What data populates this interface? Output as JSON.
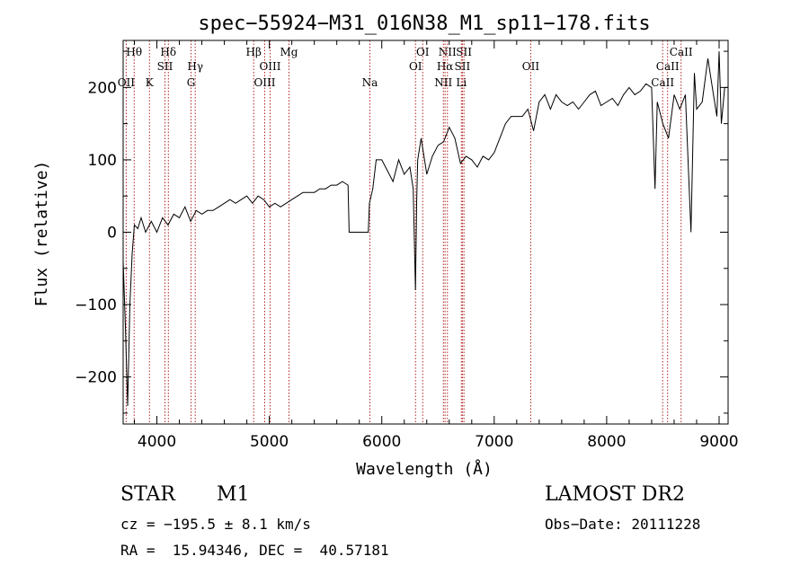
{
  "chart_data": {
    "type": "line",
    "title": "spec−55924−M31_016N38_M1_sp11−178.fits",
    "xlabel": "Wavelength (Å)",
    "ylabel": "Flux (relative)",
    "xlim": [
      3700,
      9080
    ],
    "ylim": [
      -265,
      265
    ],
    "x_ticks": [
      4000,
      5000,
      6000,
      7000,
      8000,
      9000
    ],
    "y_ticks": [
      -200,
      -100,
      0,
      100,
      200
    ],
    "y_tick_labels": [
      "−200",
      "−100",
      "0",
      "100",
      "200"
    ],
    "grid": false,
    "series": [
      {
        "x": [
          3700,
          3720,
          3740,
          3760,
          3780,
          3800,
          3830,
          3860,
          3900,
          3950,
          4000,
          4050,
          4100,
          4150,
          4200,
          4250,
          4300,
          4350,
          4400,
          4450,
          4500,
          4550,
          4600,
          4650,
          4700,
          4750,
          4800,
          4850,
          4900,
          4950,
          5000,
          5050,
          5100,
          5150,
          5200,
          5250,
          5300,
          5350,
          5400,
          5450,
          5500,
          5550,
          5600,
          5650,
          5700,
          5710,
          5750,
          5800,
          5850,
          5880,
          5890,
          5920,
          5950,
          6000,
          6050,
          6100,
          6150,
          6200,
          6250,
          6280,
          6300,
          6310,
          6320,
          6350,
          6400,
          6450,
          6500,
          6550,
          6600,
          6650,
          6700,
          6750,
          6800,
          6850,
          6900,
          6950,
          7000,
          7050,
          7100,
          7150,
          7200,
          7250,
          7300,
          7350,
          7400,
          7450,
          7500,
          7550,
          7600,
          7650,
          7700,
          7750,
          7800,
          7850,
          7900,
          7950,
          8000,
          8050,
          8100,
          8150,
          8200,
          8250,
          8300,
          8350,
          8400,
          8430,
          8450,
          8500,
          8550,
          8600,
          8650,
          8700,
          8750,
          8780,
          8800,
          8850,
          8900,
          8950,
          8980,
          9000,
          9020,
          9050,
          9080
        ],
        "y": [
          -40,
          -130,
          -240,
          -100,
          -30,
          10,
          5,
          20,
          0,
          15,
          0,
          20,
          10,
          25,
          20,
          35,
          15,
          30,
          25,
          30,
          30,
          35,
          40,
          45,
          40,
          45,
          50,
          40,
          50,
          45,
          35,
          40,
          35,
          40,
          45,
          50,
          55,
          55,
          55,
          60,
          60,
          65,
          65,
          70,
          65,
          0,
          0,
          0,
          0,
          0,
          40,
          60,
          100,
          100,
          85,
          70,
          100,
          80,
          90,
          60,
          -80,
          40,
          100,
          130,
          80,
          105,
          120,
          125,
          145,
          130,
          95,
          105,
          100,
          90,
          105,
          100,
          110,
          130,
          150,
          160,
          160,
          160,
          170,
          140,
          180,
          190,
          170,
          190,
          180,
          175,
          180,
          170,
          180,
          190,
          195,
          175,
          180,
          185,
          175,
          190,
          200,
          190,
          195,
          205,
          200,
          60,
          180,
          150,
          130,
          190,
          170,
          190,
          0,
          220,
          170,
          180,
          240,
          190,
          160,
          250,
          150,
          200,
          200
        ]
      }
    ],
    "emission_lines": [
      {
        "label": "Hθ",
        "x": 3798,
        "row": 1
      },
      {
        "label": "OII",
        "x": 3727,
        "row": 3
      },
      {
        "label": "K",
        "x": 3934,
        "row": 3
      },
      {
        "label": "Hδ",
        "x": 4102,
        "row": 1
      },
      {
        "label": "SII",
        "x": 4072,
        "row": 2
      },
      {
        "label": "Hγ",
        "x": 4341,
        "row": 2
      },
      {
        "label": "G",
        "x": 4304,
        "row": 3
      },
      {
        "label": "Hβ",
        "x": 4861,
        "row": 1
      },
      {
        "label": "OIII",
        "x": 5007,
        "row": 2
      },
      {
        "label": "OIII",
        "x": 4959,
        "row": 3
      },
      {
        "label": "Mg",
        "x": 5175,
        "row": 1
      },
      {
        "label": "Na",
        "x": 5894,
        "row": 3
      },
      {
        "label": "OI",
        "x": 6364,
        "row": 1
      },
      {
        "label": "OI",
        "x": 6300,
        "row": 2
      },
      {
        "label": "NII",
        "x": 6584,
        "row": 1
      },
      {
        "label": "Hα",
        "x": 6563,
        "row": 2
      },
      {
        "label": "NII",
        "x": 6548,
        "row": 3
      },
      {
        "label": "SII",
        "x": 6731,
        "row": 1
      },
      {
        "label": "SII",
        "x": 6717,
        "row": 2
      },
      {
        "label": "Li",
        "x": 6708,
        "row": 3
      },
      {
        "label": "OII",
        "x": 7325,
        "row": 2
      },
      {
        "label": "CaII",
        "x": 8662,
        "row": 1
      },
      {
        "label": "CaII",
        "x": 8542,
        "row": 2
      },
      {
        "label": "CaII",
        "x": 8498,
        "row": 3
      }
    ]
  },
  "info": {
    "object_class": "STAR",
    "subclass": "M1",
    "survey": "LAMOST DR2",
    "cz": "cz = −195.5 ± 8.1 km/s",
    "obs_date": "Obs−Date: 20111228",
    "coords": "RA =  15.94346, DEC =  40.57181"
  },
  "colors": {
    "spectrum": "#000000",
    "emission_line": "#b22222"
  }
}
